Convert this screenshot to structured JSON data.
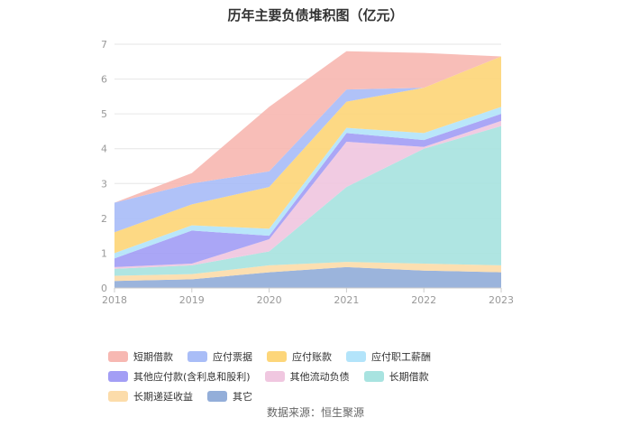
{
  "chart_data": {
    "type": "area",
    "stacked": true,
    "title": "历年主要负债堆积图（亿元）",
    "x": [
      "2018",
      "2019",
      "2020",
      "2021",
      "2022",
      "2023"
    ],
    "ylim": [
      0,
      7
    ],
    "yticks": [
      "0",
      "1",
      "2",
      "3",
      "4",
      "5",
      "6",
      "7"
    ],
    "grid": true,
    "legend_position": "bottom",
    "series": [
      {
        "name": "其它",
        "color": "#93aed9",
        "values": [
          0.2,
          0.25,
          0.45,
          0.6,
          0.5,
          0.45
        ]
      },
      {
        "name": "长期递延收益",
        "color": "#fcdcaa",
        "values": [
          0.15,
          0.15,
          0.2,
          0.15,
          0.2,
          0.2
        ]
      },
      {
        "name": "长期借款",
        "color": "#a8e3e0",
        "values": [
          0.2,
          0.25,
          0.4,
          2.15,
          3.3,
          4.0
        ]
      },
      {
        "name": "其他流动负债",
        "color": "#f0c7e0",
        "values": [
          0.05,
          0.05,
          0.35,
          1.3,
          0.05,
          0.15
        ]
      },
      {
        "name": "其他应付款(含利息和股利)",
        "color": "#a39ef5",
        "values": [
          0.25,
          0.95,
          0.1,
          0.25,
          0.2,
          0.2
        ]
      },
      {
        "name": "应付职工薪酬",
        "color": "#b3e4fa",
        "values": [
          0.15,
          0.15,
          0.2,
          0.15,
          0.2,
          0.2
        ]
      },
      {
        "name": "应付账款",
        "color": "#fdd67a",
        "values": [
          0.6,
          0.6,
          1.2,
          0.75,
          1.3,
          1.45
        ]
      },
      {
        "name": "应付票据",
        "color": "#a9bdf7",
        "values": [
          0.85,
          0.6,
          0.45,
          0.35,
          0.0,
          0.0
        ]
      },
      {
        "name": "短期借款",
        "color": "#f7b8b2",
        "values": [
          0.0,
          0.3,
          1.85,
          1.1,
          1.0,
          0.0
        ]
      }
    ],
    "legend_order": [
      "短期借款",
      "应付票据",
      "应付账款",
      "应付职工薪酬",
      "其他应付款(含利息和股利)",
      "其他流动负债",
      "长期借款",
      "长期递延收益",
      "其它"
    ]
  },
  "source_text": "数据来源：恒生聚源",
  "colors": {
    "grid": "#e6e6e6",
    "axis": "#cccccc"
  }
}
